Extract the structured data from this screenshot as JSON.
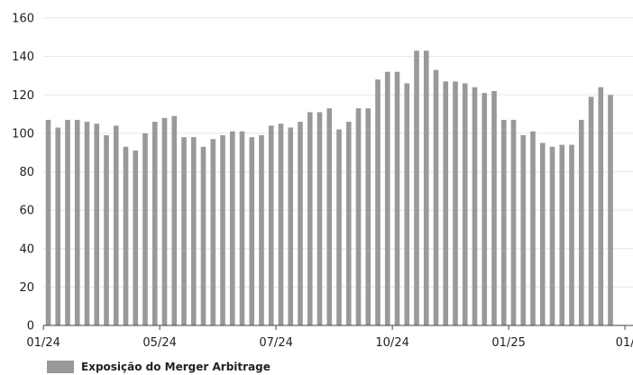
{
  "chart_data": {
    "type": "bar",
    "title": "",
    "xlabel": "",
    "ylabel": "",
    "ylim": [
      0,
      160
    ],
    "yticks": [
      "0",
      "20",
      "40",
      "60",
      "80",
      "100",
      "120",
      "140",
      "160"
    ],
    "xtick_labels": [
      {
        "label": "01/24",
        "index": 0
      },
      {
        "label": "05/24",
        "index": 12
      },
      {
        "label": "07/24",
        "index": 24
      },
      {
        "label": "10/24",
        "index": 36
      },
      {
        "label": "01/25",
        "index": 48
      },
      {
        "label": "01/",
        "index": 60
      }
    ],
    "grid": {
      "horizontal": true,
      "vertical": false
    },
    "legend_placement": "bottom-left",
    "series": [
      {
        "name": "Exposição do Merger Arbitrage",
        "color": "#999999",
        "values": [
          107,
          103,
          107,
          107,
          106,
          105,
          99,
          104,
          93,
          91,
          100,
          106,
          108,
          109,
          98,
          98,
          93,
          97,
          99,
          101,
          101,
          98,
          99,
          104,
          105,
          103,
          106,
          111,
          111,
          113,
          102,
          106,
          113,
          113,
          128,
          132,
          132,
          126,
          143,
          143,
          133,
          127,
          127,
          126,
          124,
          121,
          122,
          107,
          107,
          99,
          101,
          95,
          93,
          94,
          94,
          107,
          119,
          124,
          120
        ]
      }
    ]
  }
}
